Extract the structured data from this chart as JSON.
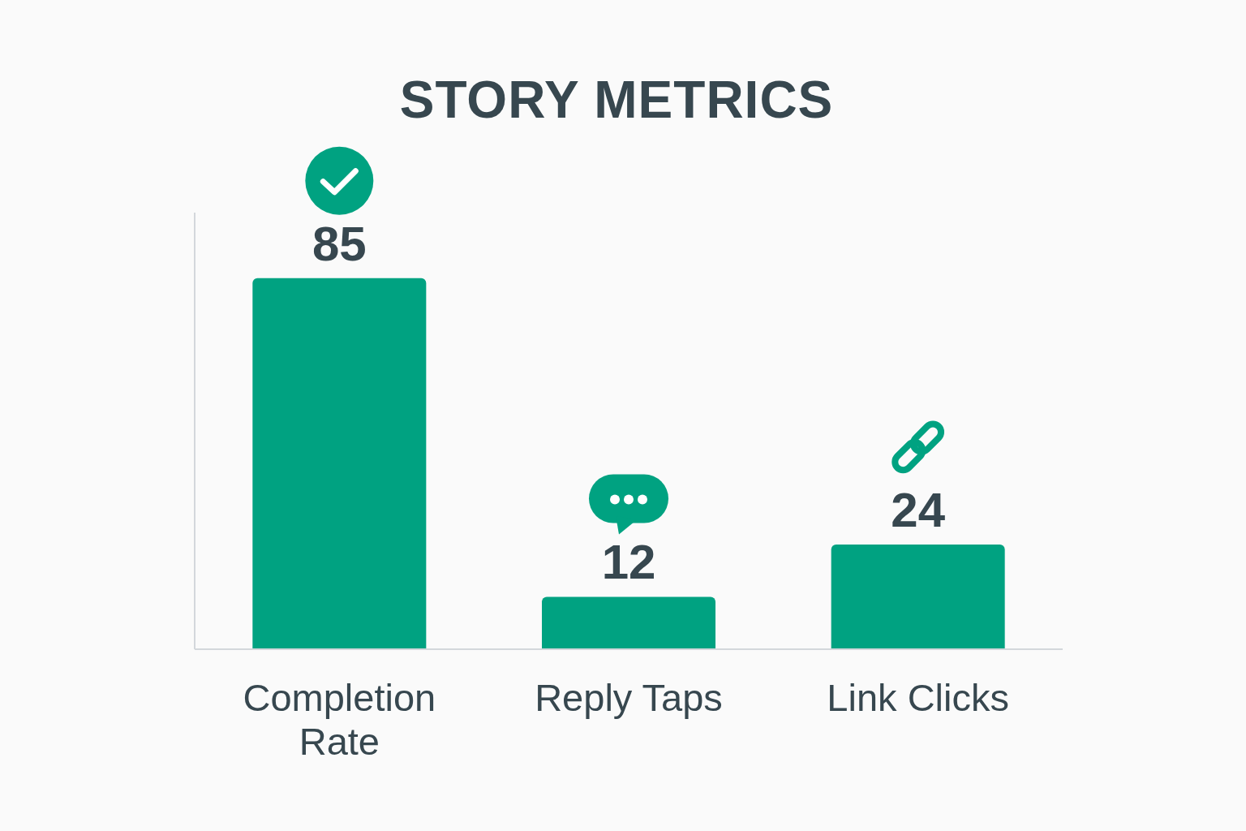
{
  "chart_data": {
    "type": "bar",
    "title": "STORY METRICS",
    "categories": [
      "Completion Rate",
      "Reply Taps",
      "Link Clicks"
    ],
    "values": [
      85,
      12,
      24
    ],
    "color": "#00a281",
    "data_labels": true,
    "tick_labels": "x"
  }
}
